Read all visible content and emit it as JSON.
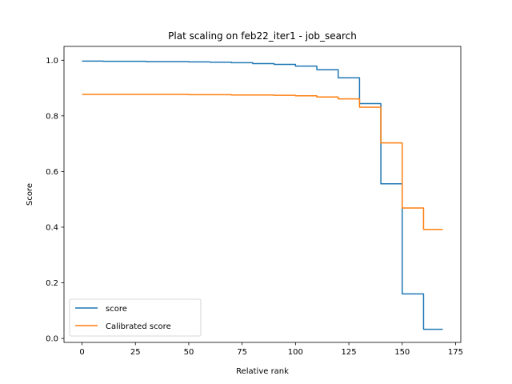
{
  "chart_data": {
    "type": "line",
    "title": "Plat scaling on feb22_iter1 - job_search",
    "xlabel": "Relative rank",
    "ylabel": "Score",
    "xlim": [
      -8.45,
      177.45
    ],
    "ylim": [
      -0.0142,
      1.0497
    ],
    "xticks": [
      0,
      25,
      50,
      75,
      100,
      125,
      150,
      175
    ],
    "xtick_labels": [
      "0",
      "25",
      "50",
      "75",
      "100",
      "125",
      "150",
      "175"
    ],
    "yticks": [
      0.0,
      0.2,
      0.4,
      0.6,
      0.8,
      1.0
    ],
    "ytick_labels": [
      "0.0",
      "0.2",
      "0.4",
      "0.6",
      "0.8",
      "1.0"
    ],
    "grid": false,
    "legend_position": "lower-left",
    "series": [
      {
        "name": "score",
        "color": "#1f77b4",
        "x": [
          0,
          10,
          10,
          20,
          20,
          30,
          30,
          40,
          40,
          50,
          50,
          60,
          60,
          70,
          70,
          80,
          80,
          90,
          90,
          100,
          100,
          110,
          110,
          120,
          120,
          130,
          130,
          140,
          140,
          150,
          150,
          160,
          160,
          169
        ],
        "y": [
          0.997,
          0.997,
          0.996,
          0.996,
          0.996,
          0.996,
          0.995,
          0.995,
          0.995,
          0.995,
          0.994,
          0.994,
          0.993,
          0.993,
          0.991,
          0.991,
          0.988,
          0.988,
          0.985,
          0.985,
          0.979,
          0.979,
          0.966,
          0.966,
          0.937,
          0.937,
          0.844,
          0.844,
          0.556,
          0.556,
          0.16,
          0.16,
          0.033,
          0.033
        ]
      },
      {
        "name": "Calibrated score",
        "color": "#ff7f0e",
        "x": [
          0,
          10,
          10,
          20,
          20,
          30,
          30,
          40,
          40,
          50,
          50,
          60,
          60,
          70,
          70,
          80,
          80,
          90,
          90,
          100,
          100,
          110,
          110,
          120,
          120,
          130,
          130,
          140,
          140,
          150,
          150,
          160,
          160,
          169
        ],
        "y": [
          0.877,
          0.877,
          0.877,
          0.877,
          0.877,
          0.877,
          0.877,
          0.877,
          0.877,
          0.877,
          0.876,
          0.876,
          0.876,
          0.876,
          0.875,
          0.875,
          0.875,
          0.875,
          0.874,
          0.874,
          0.872,
          0.872,
          0.868,
          0.868,
          0.861,
          0.861,
          0.831,
          0.831,
          0.703,
          0.703,
          0.469,
          0.469,
          0.392,
          0.392
        ]
      }
    ]
  }
}
